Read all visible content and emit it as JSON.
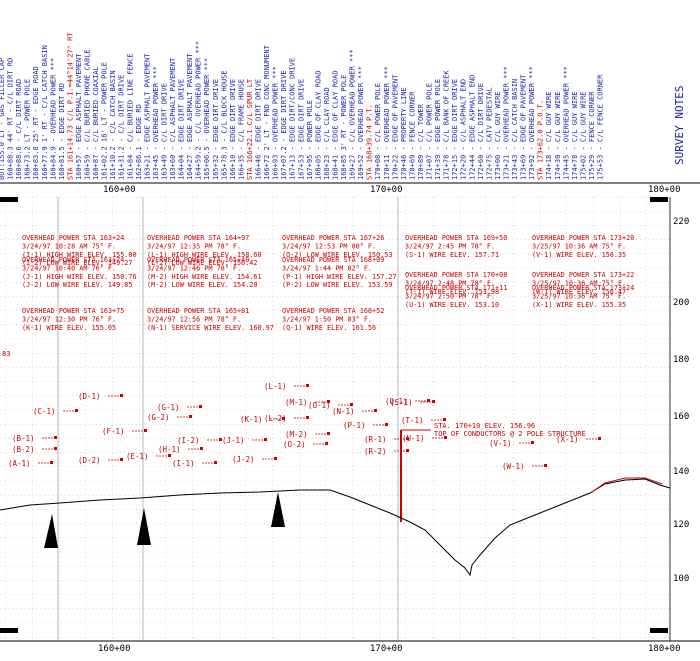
{
  "header": {
    "title": "SURVEY NOTES",
    "notes": [
      "BOT:155.0 LT - GAS FILLER CAP",
      "160+88.3 44' RT - C/L DIRT RD",
      "160+88.6 - C/L DIRT ROAD",
      "160+73.2 LT - POWER POLE",
      "160+83.8 25' RT - EDGE ROAD",
      "160+77.9 1' RT - C/L CATCH BASIN",
      "160+84.9 - OVERHEAD POWER ***",
      "160+81.5 - EDGE DIRT RD",
      "160+57 - EDGE ASPHALT PAVEMENT",
      "160+59 - C/L BURIED PHONE CABLE",
      "160+87 - C/L BURIED COAXIAL",
      "161+02.2 18' LT - POWER POLE",
      "161+10.2 - C/L CATCH BASIN",
      "161+31.2 - C/L DIRT DRIVE",
      "161+84 - C/L BURIED LINE FENCE",
      "162+86.1 - EDGE RD",
      "163+21 - EDGE ASPHALT PAVEMENT",
      "163+45 - OVERHEAD POWER ***",
      "163+49 - C/L DIRT DRIVE",
      "163+60 - C/L ASPHALT PAVEMENT",
      "164+04 - EDGE DIRT DRIVE",
      "164+27 - EDGE ASPHALT PAVEMENT",
      "164+59.2 - C/L OVERHEAD POWER ***",
      "165+06.5 - OVERHEAD POWER ***",
      "165+32 - EDGE DIRT DRIVE",
      "165+78.3 - C/L BLOCK HOUSE",
      "166+10 - EDGE DIRT DRIVE",
      "166+35 - C/L FRAME HOUSE",
      "166+46 - EDGE DIRT DRIVE",
      "166+72 2' LT - FND CONC MONUMENT",
      "166+93 - OVERHEAD POWER ***",
      "167+07.2 - EDGE DIRT DRIVE",
      "167+13 - EDGE DIRT/CONC DRIVE",
      "167+53 - EDGE DIRT DRIVE",
      "167+95 - POWER POLE",
      "168+05 - EDGE OF CLAY ROAD",
      "168+23 - C/L CLAY ROAD",
      "168+41 - EDGE OF CLAY ROAD",
      "168+85 3' RT - POWER POLE",
      "169+27 - C/L OVERHEAD POWER ***",
      "169+52 - OVERHEAD POWER ***",
      "170+08 - C/L POWER POLE",
      "170+11 - OVERHEAD POWER ***",
      "170+22 - EDGE OF PAVEMENT",
      "170+46 - PROPERTY LINE",
      "170+69 - FENCE CORNER",
      "170+89 - C/L TOWER",
      "171+07 - C/L POWER POLE",
      "171+39 - EDGE POWER POLE",
      "171+78 - C/L BANK OF CREEK",
      "172+15 - EDGE DIRT DRIVE",
      "172+20 - C/L ASPHALT END",
      "172+44 - EDGE ASPHALT END",
      "172+60 - C/L DIRT DRIVE",
      "172+75 - CATV PEDESTAL",
      "173+00 - C/L GUY WIRE",
      "173+21 - OVERHEAD POWER ***",
      "173+43 - C/L CATCH BASIN",
      "173+69 - EDGE OF PAVEMENT",
      "173+92 - OVERHEAD POWER ***",
      "174+18 - C/L GUY WIRE",
      "174+30 - C/L GUY WIRE",
      "174+45 - OVERHEAD POWER ***",
      "174+78 - C/L GUY WIRE",
      "175+02 - C/L GUY WIRE",
      "175+29 - FENCE CORNER",
      "175+53 - C/L FENCE CORNER"
    ],
    "red_notes": [
      "STA 161+14.73 C/L P.I.=44°14'27\" RT",
      "STA 166+22.1 C/L SPUR LT",
      "STA 168+39.74 P.T.",
      "STA 173+62.0 P.O.T."
    ]
  },
  "profile": {
    "top_stations": [
      "160+00",
      "170+00",
      "180+00"
    ],
    "bottom_stations": [
      "160+00",
      "170+00",
      "180+00"
    ],
    "elevation_labels": [
      "220",
      "200",
      "180",
      "160",
      "140",
      "120",
      "100"
    ],
    "left_edge_label": "83",
    "callouts": [
      "OVERHEAD POWER STA 163+24",
      "3/24/97 10:28 AM 75° F.",
      "(I-1) HIGH WIRE ELEV. 155.00",
      "(I-2) LOW WIRE ELEV. 149.27",
      "OVERHEAD POWER STA 164+97",
      "3/24/97 12:35 PM 78° F.",
      "(L-1) HIGH WIRE ELEV. 158.60",
      "(L-2) LOW WIRE ELEV. 156.42",
      "OVERHEAD POWER STA 167+26",
      "3/24/97 12:53 PM 80° F.",
      "(O-2) LOW WIRE ELEV. 150.53",
      "OVERHEAD POWER STA 169+50",
      "3/24/97 2:45 PM 78° F.",
      "(S-1) WIRE ELEV. 157.71",
      "OVERHEAD POWER STA 173+20",
      "3/25/97 10:36 AM 75° F.",
      "(V-1) WIRE ELEV. 150.35",
      "OVERHEAD POWER STA 163+74",
      "3/24/97 10:40 AM 76° F.",
      "(J-1) HIGH WIRE ELEV. 150.76",
      "(J-2) LOW WIRE ELEV. 149.85",
      "OVERHEAD POWER STA 165+40",
      "3/24/97 12:46 PM 78° F.",
      "(M-2) HIGH WIRE ELEV. 154.61",
      "(M-2) LOW WIRE ELEV. 154.20",
      "OVERHEAD POWER STA 168+09",
      "3/24/97 1:44 PM 82° F.",
      "(P-1) HIGH WIRE ELEV. 157.27",
      "(P-2) LOW WIRE ELEV. 153.59",
      "OVERHEAD POWER STA 170+08",
      "3/24/97 2:48 PM 78° F.",
      "(T-1) WIRE ELEV. 153.98",
      "OVERHEAD POWER STA 173+22",
      "3/25/97 10:36 AM 75° F.",
      "(W-1) WIRE ELEV. 156.47",
      "OVERHEAD POWER STA 163+75",
      "3/24/97 12:30 PM 76° F.",
      "(K-1) WIRE ELEV. 155.05",
      "OVERHEAD POWER STA 165+81",
      "3/24/97 12:56 PM 78° F.",
      "(N-1) SERVICE WIRE ELEV. 160.97",
      "OVERHEAD POWER STA 168+52",
      "3/24/97 1:50 PM 83° F.",
      "(Q-1) WIRE ELEV. 161.56",
      "OVERHEAD POWER STA 171+11",
      "3/24/97 2:50 PM 78° F.",
      "(U-1) WIRE ELEV. 153.10",
      "OVERHEAD POWER STA 173+24",
      "3/25/97 10:36 AM 75° F.",
      "(X-1) WIRE ELEV. 155.35"
    ],
    "wire_labels": [
      "(B-1)",
      "(B-2)",
      "(A-1)",
      "(C-1)",
      "(D-1)",
      "(D-2)",
      "(E-1)",
      "(F-1)",
      "(G-1)",
      "(G-2)",
      "(H-1)",
      "(I-1)",
      "(I-2)",
      "(J-1)",
      "(J-2)",
      "(K-1)",
      "(L-1)",
      "(L-2)",
      "(M-1)",
      "(M-2)",
      "(N-1)",
      "(O-1)",
      "(O-2)",
      "(P-1)",
      "(Q-1)",
      "(R-1)",
      "(R-2)",
      "(S-1)",
      "(T-1)",
      "(U-1)",
      "(V-1)",
      "(W-1)",
      "(X-1)"
    ],
    "structure_note": [
      "STA. 170+10 ELEV. 156.96",
      "TOP OF CONDUCTORS @ 2 POLE STRUCTURE"
    ]
  },
  "colors": {
    "grid": "#b8b8b8",
    "notes": "#1e1ea8",
    "callouts": "#cc0000",
    "ground": "#000000"
  }
}
